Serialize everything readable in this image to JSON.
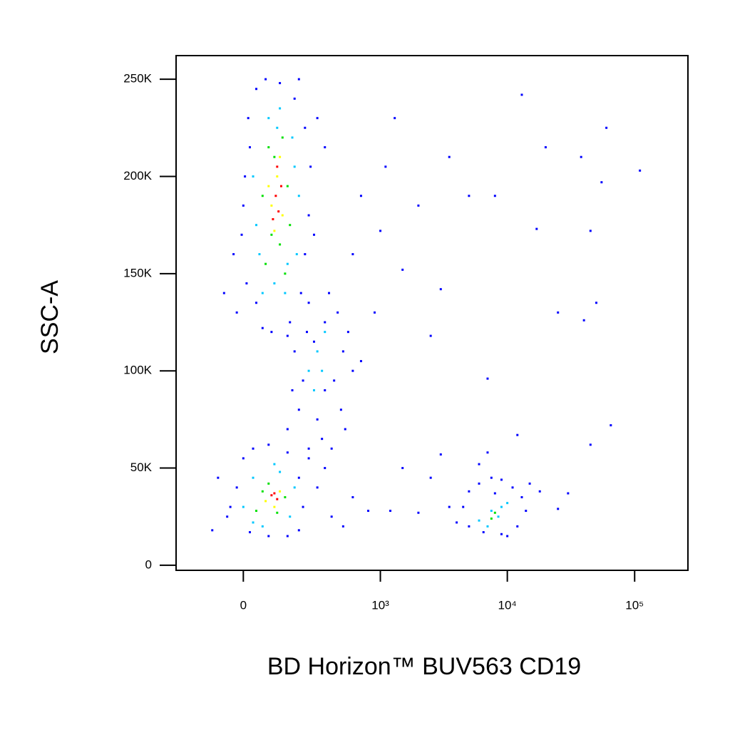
{
  "chart_data": {
    "type": "scatter",
    "x_label": "BD Horizon™ BUV563 CD19",
    "y_label": "SSC-A",
    "xscale": "biexponential",
    "xlim": [
      -260,
      262144
    ],
    "ylim": [
      -2600,
      262144
    ],
    "xticks": [
      0,
      {
        "value": 1000,
        "label": "10³"
      },
      {
        "value": 10000,
        "label": "10⁴"
      },
      {
        "value": 100000,
        "label": "10⁵"
      }
    ],
    "yticks": [
      0,
      {
        "value": 50000,
        "label": "50K"
      },
      {
        "value": 100000,
        "label": "100K"
      },
      {
        "value": 150000,
        "label": "150K"
      },
      {
        "value": 200000,
        "label": "200K"
      },
      {
        "value": 250000,
        "label": "250K"
      }
    ],
    "grid": false,
    "series": [
      {
        "color": "#0000ff",
        "x": [
          -20,
          10,
          -5,
          5,
          15,
          40,
          70,
          120,
          180,
          230,
          260,
          250,
          230,
          210,
          160,
          90,
          40,
          0,
          20,
          200,
          300,
          350,
          -60,
          280,
          150,
          60,
          240,
          -30,
          150,
          200,
          250,
          300,
          350,
          420,
          500,
          550,
          600,
          450,
          380,
          250,
          180,
          220,
          330,
          480,
          700,
          280,
          400,
          350,
          520,
          170,
          -100,
          -50,
          -20,
          0,
          30,
          80,
          150,
          200,
          220,
          200,
          150,
          80,
          20,
          -40,
          250,
          300,
          400,
          500,
          600,
          800,
          350,
          -80,
          4000,
          4500,
          5000,
          6000,
          7500,
          9000,
          11000,
          13000,
          14000,
          12000,
          9000,
          6500,
          5000,
          8000,
          15000,
          3500,
          18000,
          10000,
          1100,
          1300,
          2000,
          3500,
          5000,
          8000,
          13000,
          20000,
          38000,
          60000,
          110000,
          55000,
          45000,
          17000,
          3000,
          1500,
          2500,
          7000,
          25000,
          50000,
          40000,
          12000,
          45000,
          65000,
          2500,
          1500,
          3000,
          7000,
          900,
          600,
          700,
          1000,
          30000,
          25000,
          6000,
          2000,
          1200
        ],
        "values": [
          130000,
          145000,
          170000,
          200000,
          230000,
          245000,
          250000,
          248000,
          240000,
          225000,
          205000,
          180000,
          160000,
          140000,
          125000,
          120000,
          135000,
          185000,
          215000,
          250000,
          230000,
          215000,
          140000,
          170000,
          118000,
          122000,
          120000,
          160000,
          70000,
          80000,
          60000,
          75000,
          90000,
          95000,
          110000,
          120000,
          100000,
          130000,
          140000,
          135000,
          110000,
          95000,
          65000,
          80000,
          105000,
          115000,
          60000,
          125000,
          70000,
          90000,
          18000,
          25000,
          40000,
          55000,
          60000,
          62000,
          58000,
          45000,
          30000,
          18000,
          15000,
          15000,
          17000,
          30000,
          55000,
          40000,
          25000,
          20000,
          35000,
          28000,
          50000,
          45000,
          22000,
          30000,
          38000,
          42000,
          45000,
          44000,
          40000,
          35000,
          28000,
          20000,
          16000,
          17000,
          20000,
          37000,
          42000,
          30000,
          38000,
          15000,
          205000,
          230000,
          185000,
          210000,
          190000,
          190000,
          242000,
          215000,
          210000,
          225000,
          203000,
          197000,
          172000,
          173000,
          142000,
          152000,
          118000,
          96000,
          130000,
          135000,
          126000,
          67000,
          62000,
          72000,
          45000,
          50000,
          57000,
          58000,
          130000,
          160000,
          190000,
          172000,
          37000,
          29000,
          52000,
          27000,
          28000
        ]
      },
      {
        "color": "#00c8ff",
        "x": [
          60,
          50,
          80,
          120,
          170,
          200,
          190,
          140,
          30,
          100,
          150,
          110,
          40,
          180,
          250,
          300,
          280,
          330,
          350,
          0,
          30,
          100,
          180,
          160,
          60,
          120,
          30,
          6000,
          7500,
          9000,
          7000,
          8500,
          10000
        ],
        "values": [
          140000,
          160000,
          230000,
          235000,
          220000,
          190000,
          160000,
          140000,
          200000,
          145000,
          155000,
          225000,
          175000,
          205000,
          100000,
          110000,
          90000,
          100000,
          120000,
          30000,
          45000,
          52000,
          40000,
          25000,
          20000,
          48000,
          22000,
          23000,
          28000,
          30000,
          20000,
          25000,
          32000
        ]
      },
      {
        "color": "#00e000",
        "x": [
          70,
          90,
          60,
          100,
          130,
          150,
          160,
          120,
          80,
          140,
          40,
          80,
          140,
          110,
          60,
          7500,
          8000
        ],
        "values": [
          155000,
          170000,
          190000,
          210000,
          220000,
          195000,
          175000,
          165000,
          215000,
          150000,
          28000,
          42000,
          35000,
          27000,
          38000,
          24000,
          27000
        ]
      },
      {
        "color": "#ffff00",
        "x": [
          90,
          110,
          130,
          100,
          120,
          80,
          70,
          120,
          100
        ],
        "values": [
          185000,
          200000,
          180000,
          172000,
          210000,
          195000,
          33000,
          38000,
          30000
        ]
      },
      {
        "color": "#ff0000",
        "x": [
          105,
          115,
          95,
          110,
          125,
          90,
          100,
          110
        ],
        "values": [
          190000,
          182000,
          178000,
          205000,
          195000,
          36000,
          37000,
          34000
        ]
      }
    ]
  }
}
